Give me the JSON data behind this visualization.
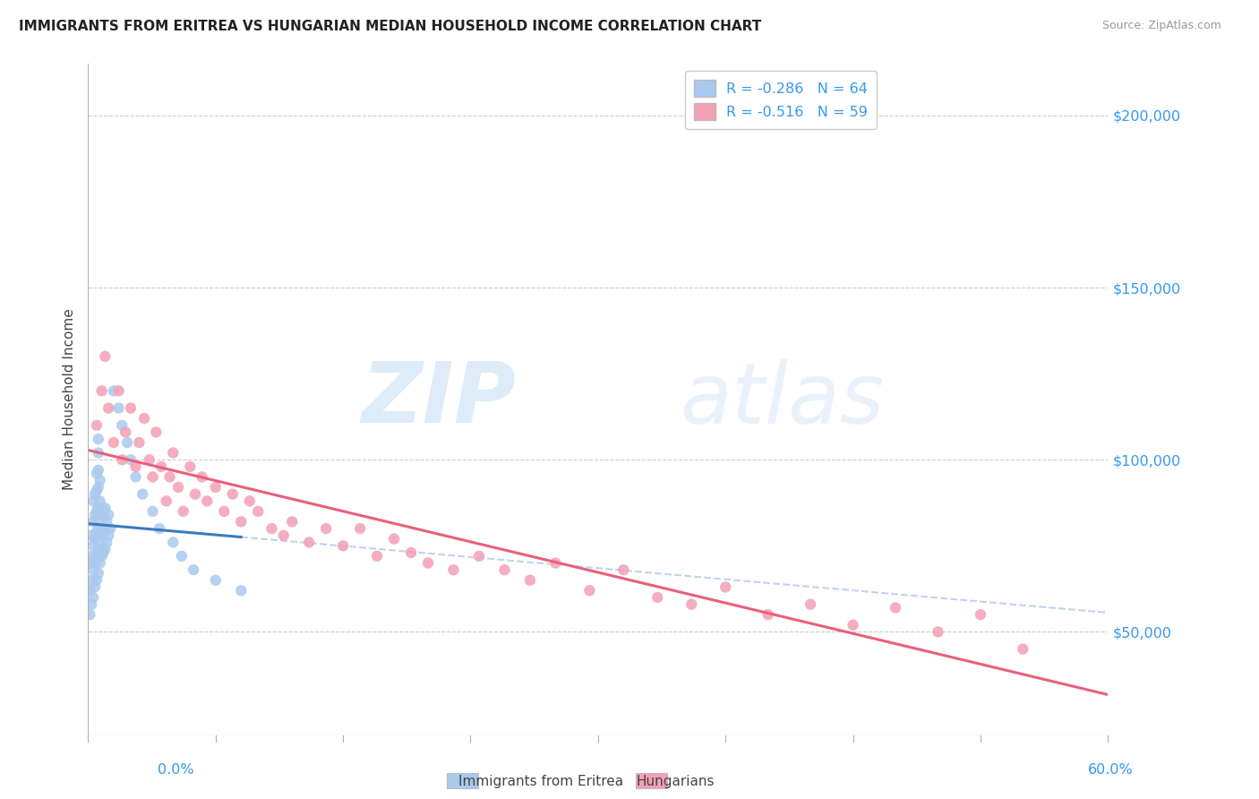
{
  "title": "IMMIGRANTS FROM ERITREA VS HUNGARIAN MEDIAN HOUSEHOLD INCOME CORRELATION CHART",
  "source": "Source: ZipAtlas.com",
  "ylabel": "Median Household Income",
  "yticks": [
    50000,
    100000,
    150000,
    200000
  ],
  "ytick_labels": [
    "$50,000",
    "$100,000",
    "$150,000",
    "$200,000"
  ],
  "xlim": [
    0.0,
    0.6
  ],
  "ylim": [
    20000,
    215000
  ],
  "legend_r1": "R = -0.286",
  "legend_n1": "N = 64",
  "legend_r2": "R = -0.516",
  "legend_n2": "N = 59",
  "legend_label1": "Immigrants from Eritrea",
  "legend_label2": "Hungarians",
  "color_eritrea": "#aac9ef",
  "color_hungarian": "#f4a0b5",
  "color_line_eritrea": "#3a7bbf",
  "color_line_hungarian": "#e8607a",
  "color_line_extend": "#b0c8e8",
  "watermark_zip": "ZIP",
  "watermark_atlas": "atlas",
  "background_color": "#ffffff",
  "eritrea_x": [
    0.001,
    0.001,
    0.001,
    0.002,
    0.002,
    0.002,
    0.002,
    0.003,
    0.003,
    0.003,
    0.003,
    0.003,
    0.004,
    0.004,
    0.004,
    0.004,
    0.004,
    0.005,
    0.005,
    0.005,
    0.005,
    0.005,
    0.005,
    0.006,
    0.006,
    0.006,
    0.006,
    0.006,
    0.006,
    0.006,
    0.006,
    0.007,
    0.007,
    0.007,
    0.007,
    0.007,
    0.008,
    0.008,
    0.008,
    0.009,
    0.009,
    0.009,
    0.01,
    0.01,
    0.01,
    0.011,
    0.011,
    0.012,
    0.012,
    0.013,
    0.015,
    0.018,
    0.02,
    0.023,
    0.025,
    0.028,
    0.032,
    0.038,
    0.042,
    0.05,
    0.055,
    0.062,
    0.075,
    0.09
  ],
  "eritrea_y": [
    55000,
    62000,
    70000,
    58000,
    65000,
    72000,
    78000,
    60000,
    68000,
    75000,
    82000,
    88000,
    63000,
    70000,
    77000,
    84000,
    90000,
    65000,
    72000,
    79000,
    85000,
    91000,
    96000,
    67000,
    74000,
    80000,
    86000,
    92000,
    97000,
    102000,
    106000,
    70000,
    76000,
    82000,
    88000,
    94000,
    72000,
    78000,
    84000,
    73000,
    79000,
    85000,
    74000,
    80000,
    86000,
    76000,
    82000,
    78000,
    84000,
    80000,
    120000,
    115000,
    110000,
    105000,
    100000,
    95000,
    90000,
    85000,
    80000,
    76000,
    72000,
    68000,
    65000,
    62000
  ],
  "hungarian_x": [
    0.005,
    0.008,
    0.01,
    0.012,
    0.015,
    0.018,
    0.02,
    0.022,
    0.025,
    0.028,
    0.03,
    0.033,
    0.036,
    0.038,
    0.04,
    0.043,
    0.046,
    0.048,
    0.05,
    0.053,
    0.056,
    0.06,
    0.063,
    0.067,
    0.07,
    0.075,
    0.08,
    0.085,
    0.09,
    0.095,
    0.1,
    0.108,
    0.115,
    0.12,
    0.13,
    0.14,
    0.15,
    0.16,
    0.17,
    0.18,
    0.19,
    0.2,
    0.215,
    0.23,
    0.245,
    0.26,
    0.275,
    0.295,
    0.315,
    0.335,
    0.355,
    0.375,
    0.4,
    0.425,
    0.45,
    0.475,
    0.5,
    0.525,
    0.55
  ],
  "hungarian_y": [
    110000,
    120000,
    130000,
    115000,
    105000,
    120000,
    100000,
    108000,
    115000,
    98000,
    105000,
    112000,
    100000,
    95000,
    108000,
    98000,
    88000,
    95000,
    102000,
    92000,
    85000,
    98000,
    90000,
    95000,
    88000,
    92000,
    85000,
    90000,
    82000,
    88000,
    85000,
    80000,
    78000,
    82000,
    76000,
    80000,
    75000,
    80000,
    72000,
    77000,
    73000,
    70000,
    68000,
    72000,
    68000,
    65000,
    70000,
    62000,
    68000,
    60000,
    58000,
    63000,
    55000,
    58000,
    52000,
    57000,
    50000,
    55000,
    45000
  ]
}
